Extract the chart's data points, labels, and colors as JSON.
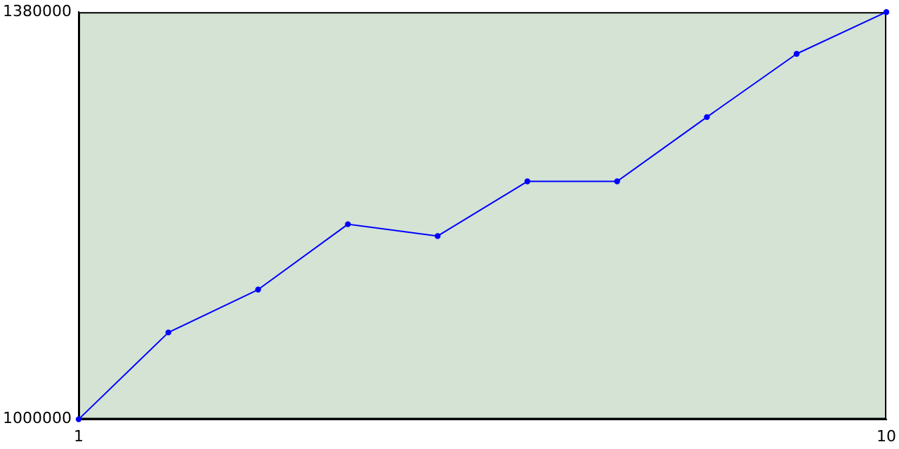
{
  "chart_data": {
    "type": "line",
    "x": [
      1,
      2,
      3,
      4,
      5,
      6,
      7,
      8,
      9,
      10
    ],
    "series": [
      {
        "color": "#0000ff",
        "values": [
          1000000,
          1081000,
          1121000,
          1182000,
          1171000,
          1222000,
          1222000,
          1282000,
          1341000,
          1380000
        ]
      }
    ],
    "xlim": [
      1,
      10
    ],
    "xticks": [
      1,
      10
    ],
    "ylim": [
      1000000,
      1380000
    ],
    "yticks": [
      1000000,
      1380000
    ],
    "grid": false,
    "legend": false,
    "marker": "circle",
    "line_style": "solid"
  }
}
